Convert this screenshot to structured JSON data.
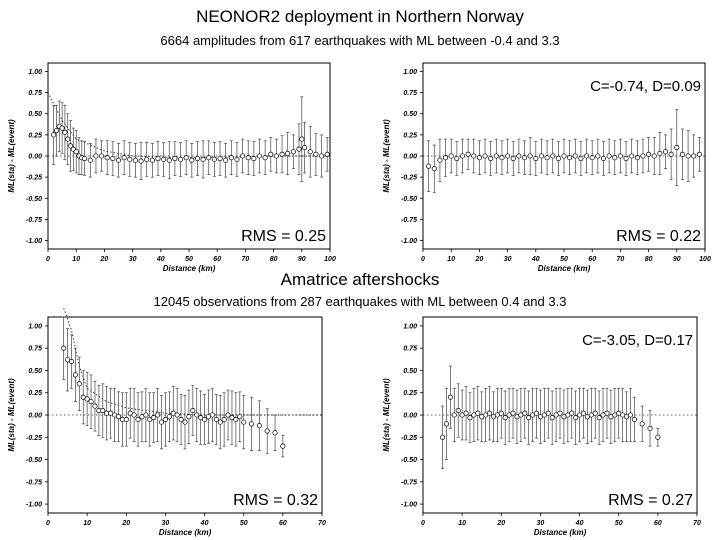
{
  "sections": [
    {
      "title": "NEONOR2 deployment in Northern Norway",
      "subtitle": "6664 amplitudes  from 617 earthquakes with ML between -0.4 and 3.3"
    },
    {
      "title": "Amatrice aftershocks",
      "subtitle": "12045 observations from 287 earthquakes with ML between 0.4 and 3.3"
    }
  ],
  "chart_data": [
    {
      "type": "scatter",
      "panel": "top-left",
      "xlabel": "Distance (km)",
      "ylabel": "ML(sta) - ML(event)",
      "xlim": [
        0,
        100
      ],
      "ylim": [
        -1.1,
        1.1
      ],
      "xticks": [
        "0",
        "10",
        "20",
        "30",
        "40",
        "50",
        "60",
        "70",
        "80",
        "90",
        "100"
      ],
      "yticks": [
        "1.00",
        "0.75",
        "0.50",
        "0.25",
        "0.00",
        "-0.25",
        "-0.50",
        "-0.75",
        "-1.00"
      ],
      "annotation": "RMS = 0.25",
      "label": "",
      "points": [
        [
          2,
          0.25,
          0.35
        ],
        [
          3,
          0.3,
          0.3
        ],
        [
          4,
          0.35,
          0.3
        ],
        [
          5,
          0.33,
          0.3
        ],
        [
          6,
          0.28,
          0.32
        ],
        [
          7,
          0.2,
          0.3
        ],
        [
          8,
          0.12,
          0.3
        ],
        [
          9,
          0.08,
          0.25
        ],
        [
          10,
          0.05,
          0.25
        ],
        [
          11,
          0.0,
          0.22
        ],
        [
          12,
          -0.02,
          0.2
        ],
        [
          13,
          -0.03,
          0.2
        ],
        [
          15,
          -0.05,
          0.2
        ],
        [
          17,
          0.0,
          0.2
        ],
        [
          19,
          0.0,
          0.18
        ],
        [
          21,
          -0.02,
          0.2
        ],
        [
          23,
          -0.03,
          0.2
        ],
        [
          25,
          -0.05,
          0.2
        ],
        [
          27,
          -0.02,
          0.2
        ],
        [
          29,
          -0.04,
          0.2
        ],
        [
          31,
          -0.05,
          0.2
        ],
        [
          33,
          -0.06,
          0.22
        ],
        [
          35,
          -0.04,
          0.2
        ],
        [
          37,
          -0.05,
          0.2
        ],
        [
          39,
          -0.03,
          0.2
        ],
        [
          41,
          -0.04,
          0.2
        ],
        [
          43,
          -0.05,
          0.22
        ],
        [
          45,
          -0.03,
          0.2
        ],
        [
          47,
          -0.04,
          0.2
        ],
        [
          49,
          -0.02,
          0.2
        ],
        [
          51,
          -0.05,
          0.2
        ],
        [
          53,
          -0.03,
          0.2
        ],
        [
          55,
          -0.04,
          0.22
        ],
        [
          57,
          -0.02,
          0.2
        ],
        [
          59,
          -0.04,
          0.2
        ],
        [
          61,
          -0.03,
          0.2
        ],
        [
          63,
          -0.05,
          0.2
        ],
        [
          65,
          -0.02,
          0.2
        ],
        [
          67,
          -0.04,
          0.2
        ],
        [
          69,
          0.0,
          0.2
        ],
        [
          71,
          -0.02,
          0.2
        ],
        [
          73,
          -0.03,
          0.2
        ],
        [
          75,
          0.0,
          0.2
        ],
        [
          77,
          -0.02,
          0.2
        ],
        [
          79,
          0.02,
          0.2
        ],
        [
          81,
          0.0,
          0.2
        ],
        [
          83,
          0.02,
          0.22
        ],
        [
          85,
          0.03,
          0.25
        ],
        [
          87,
          0.05,
          0.2
        ],
        [
          89,
          0.08,
          0.3
        ],
        [
          90,
          0.2,
          0.5
        ],
        [
          91,
          0.1,
          0.3
        ],
        [
          93,
          0.05,
          0.3
        ],
        [
          95,
          0.02,
          0.25
        ],
        [
          97,
          0.0,
          0.25
        ],
        [
          99,
          0.02,
          0.2
        ]
      ],
      "trend": [
        [
          0,
          0.75
        ],
        [
          5,
          0.42
        ],
        [
          10,
          0.2
        ],
        [
          20,
          0.06
        ],
        [
          30,
          0.0
        ],
        [
          50,
          -0.02
        ],
        [
          80,
          0.0
        ],
        [
          100,
          0.0
        ]
      ]
    },
    {
      "type": "scatter",
      "panel": "top-right",
      "xlabel": "Distance (km)",
      "ylabel": "ML(sta) - ML(event)",
      "xlim": [
        0,
        100
      ],
      "ylim": [
        -1.1,
        1.1
      ],
      "xticks": [
        "0",
        "10",
        "20",
        "30",
        "40",
        "50",
        "60",
        "70",
        "80",
        "90",
        "100"
      ],
      "yticks": [
        "1.00",
        "0.75",
        "0.50",
        "0.25",
        "0.00",
        "-0.25",
        "-0.50",
        "-0.75",
        "-1.00"
      ],
      "annotation": "RMS = 0.22",
      "label": "C=-0.74, D=0.09",
      "points": [
        [
          2,
          -0.12,
          0.3
        ],
        [
          4,
          -0.15,
          0.28
        ],
        [
          6,
          -0.05,
          0.25
        ],
        [
          8,
          -0.02,
          0.22
        ],
        [
          10,
          0.0,
          0.2
        ],
        [
          12,
          -0.03,
          0.2
        ],
        [
          14,
          0.0,
          0.2
        ],
        [
          16,
          0.02,
          0.18
        ],
        [
          18,
          0.0,
          0.2
        ],
        [
          20,
          -0.02,
          0.2
        ],
        [
          22,
          0.0,
          0.2
        ],
        [
          24,
          -0.03,
          0.2
        ],
        [
          26,
          0.0,
          0.2
        ],
        [
          28,
          -0.02,
          0.2
        ],
        [
          30,
          0.0,
          0.2
        ],
        [
          32,
          -0.03,
          0.2
        ],
        [
          34,
          0.0,
          0.2
        ],
        [
          36,
          -0.02,
          0.2
        ],
        [
          38,
          0.0,
          0.22
        ],
        [
          40,
          -0.03,
          0.2
        ],
        [
          42,
          0.0,
          0.2
        ],
        [
          44,
          -0.02,
          0.2
        ],
        [
          46,
          0.0,
          0.2
        ],
        [
          48,
          -0.03,
          0.2
        ],
        [
          50,
          0.0,
          0.2
        ],
        [
          52,
          -0.02,
          0.2
        ],
        [
          54,
          0.0,
          0.2
        ],
        [
          56,
          -0.03,
          0.2
        ],
        [
          58,
          0.0,
          0.2
        ],
        [
          60,
          -0.02,
          0.2
        ],
        [
          62,
          0.0,
          0.2
        ],
        [
          64,
          -0.03,
          0.2
        ],
        [
          66,
          0.0,
          0.2
        ],
        [
          68,
          -0.02,
          0.2
        ],
        [
          70,
          0.0,
          0.2
        ],
        [
          72,
          -0.03,
          0.2
        ],
        [
          74,
          0.0,
          0.2
        ],
        [
          76,
          -0.02,
          0.2
        ],
        [
          78,
          0.0,
          0.2
        ],
        [
          80,
          0.02,
          0.2
        ],
        [
          82,
          0.0,
          0.22
        ],
        [
          84,
          0.03,
          0.25
        ],
        [
          86,
          0.05,
          0.2
        ],
        [
          88,
          0.02,
          0.3
        ],
        [
          90,
          0.1,
          0.45
        ],
        [
          92,
          0.02,
          0.3
        ],
        [
          94,
          0.0,
          0.3
        ],
        [
          96,
          0.0,
          0.25
        ],
        [
          98,
          0.02,
          0.2
        ]
      ],
      "trend": []
    },
    {
      "type": "scatter",
      "panel": "bottom-left",
      "xlabel": "Distance (km)",
      "ylabel": "ML(sta) - ML(event)",
      "xlim": [
        0,
        70
      ],
      "ylim": [
        -1.1,
        1.1
      ],
      "xticks": [
        "0",
        "10",
        "20",
        "30",
        "40",
        "50",
        "60",
        "70"
      ],
      "yticks": [
        "1.00",
        "0.75",
        "0.50",
        "0.25",
        "0.00",
        "-0.25",
        "-0.50",
        "-0.75",
        "-1.00"
      ],
      "annotation": "RMS = 0.32",
      "label": "",
      "points": [
        [
          4,
          0.75,
          0.35
        ],
        [
          5,
          0.62,
          0.35
        ],
        [
          6,
          0.6,
          0.3
        ],
        [
          7,
          0.45,
          0.3
        ],
        [
          8,
          0.35,
          0.3
        ],
        [
          9,
          0.2,
          0.3
        ],
        [
          10,
          0.18,
          0.3
        ],
        [
          11,
          0.15,
          0.3
        ],
        [
          12,
          0.1,
          0.28
        ],
        [
          13,
          0.05,
          0.28
        ],
        [
          14,
          0.05,
          0.3
        ],
        [
          15,
          0.02,
          0.3
        ],
        [
          16,
          0.02,
          0.28
        ],
        [
          17,
          0.0,
          0.3
        ],
        [
          18,
          -0.02,
          0.28
        ],
        [
          19,
          -0.05,
          0.3
        ],
        [
          20,
          -0.05,
          0.3
        ],
        [
          21,
          0.02,
          0.28
        ],
        [
          22,
          0.0,
          0.3
        ],
        [
          23,
          -0.05,
          0.3
        ],
        [
          24,
          -0.02,
          0.28
        ],
        [
          25,
          0.0,
          0.3
        ],
        [
          26,
          -0.05,
          0.3
        ],
        [
          27,
          -0.03,
          0.28
        ],
        [
          28,
          0.0,
          0.3
        ],
        [
          29,
          -0.08,
          0.3
        ],
        [
          30,
          -0.05,
          0.3
        ],
        [
          31,
          -0.02,
          0.28
        ],
        [
          32,
          0.02,
          0.3
        ],
        [
          33,
          0.0,
          0.3
        ],
        [
          34,
          -0.05,
          0.28
        ],
        [
          35,
          -0.08,
          0.3
        ],
        [
          36,
          -0.02,
          0.3
        ],
        [
          37,
          0.05,
          0.28
        ],
        [
          38,
          0.0,
          0.3
        ],
        [
          39,
          -0.03,
          0.3
        ],
        [
          40,
          -0.05,
          0.28
        ],
        [
          41,
          -0.02,
          0.3
        ],
        [
          42,
          0.0,
          0.3
        ],
        [
          43,
          -0.05,
          0.28
        ],
        [
          44,
          -0.08,
          0.3
        ],
        [
          45,
          -0.05,
          0.3
        ],
        [
          46,
          0.0,
          0.28
        ],
        [
          47,
          -0.03,
          0.3
        ],
        [
          48,
          -0.05,
          0.3
        ],
        [
          49,
          -0.02,
          0.28
        ],
        [
          50,
          -0.08,
          0.3
        ],
        [
          52,
          -0.1,
          0.3
        ],
        [
          54,
          -0.12,
          0.28
        ],
        [
          56,
          -0.18,
          0.25
        ],
        [
          58,
          -0.2,
          0.2
        ],
        [
          60,
          -0.35,
          0.12
        ]
      ],
      "trend": [
        [
          4,
          1.2
        ],
        [
          6,
          0.95
        ],
        [
          8,
          0.55
        ],
        [
          10,
          0.3
        ],
        [
          15,
          0.15
        ],
        [
          20,
          0.08
        ],
        [
          30,
          0.02
        ],
        [
          40,
          0.0
        ],
        [
          70,
          0.0
        ]
      ]
    },
    {
      "type": "scatter",
      "panel": "bottom-right",
      "xlabel": "Distance (km)",
      "ylabel": "ML(sta) - ML(event)",
      "xlim": [
        0,
        70
      ],
      "ylim": [
        -1.1,
        1.1
      ],
      "xticks": [
        "0",
        "10",
        "20",
        "30",
        "40",
        "50",
        "60",
        "70"
      ],
      "yticks": [
        "1.00",
        "0.75",
        "0.50",
        "0.25",
        "0.00",
        "-0.25",
        "-0.50",
        "-0.75",
        "-1.00"
      ],
      "annotation": "RMS = 0.27",
      "label": "C=-3.05, D=0.17",
      "points": [
        [
          5,
          -0.25,
          0.35
        ],
        [
          6,
          -0.1,
          0.4
        ],
        [
          7,
          0.2,
          0.35
        ],
        [
          8,
          0.0,
          0.3
        ],
        [
          9,
          0.05,
          0.3
        ],
        [
          10,
          0.0,
          0.28
        ],
        [
          11,
          0.02,
          0.3
        ],
        [
          12,
          -0.03,
          0.28
        ],
        [
          13,
          0.0,
          0.3
        ],
        [
          14,
          0.02,
          0.3
        ],
        [
          15,
          -0.02,
          0.28
        ],
        [
          16,
          0.0,
          0.3
        ],
        [
          17,
          0.02,
          0.3
        ],
        [
          18,
          -0.02,
          0.28
        ],
        [
          19,
          0.0,
          0.3
        ],
        [
          20,
          0.02,
          0.28
        ],
        [
          21,
          -0.03,
          0.3
        ],
        [
          22,
          0.0,
          0.3
        ],
        [
          23,
          0.02,
          0.28
        ],
        [
          24,
          -0.02,
          0.3
        ],
        [
          25,
          0.0,
          0.3
        ],
        [
          26,
          0.02,
          0.28
        ],
        [
          27,
          -0.03,
          0.3
        ],
        [
          28,
          0.0,
          0.3
        ],
        [
          29,
          0.02,
          0.28
        ],
        [
          30,
          -0.02,
          0.3
        ],
        [
          31,
          0.0,
          0.3
        ],
        [
          32,
          0.02,
          0.28
        ],
        [
          33,
          -0.03,
          0.3
        ],
        [
          34,
          0.0,
          0.3
        ],
        [
          35,
          0.02,
          0.28
        ],
        [
          36,
          -0.02,
          0.3
        ],
        [
          37,
          0.0,
          0.3
        ],
        [
          38,
          0.02,
          0.28
        ],
        [
          39,
          -0.03,
          0.3
        ],
        [
          40,
          0.0,
          0.3
        ],
        [
          41,
          0.02,
          0.28
        ],
        [
          42,
          -0.02,
          0.3
        ],
        [
          43,
          0.0,
          0.3
        ],
        [
          44,
          0.02,
          0.28
        ],
        [
          45,
          -0.03,
          0.3
        ],
        [
          46,
          0.0,
          0.3
        ],
        [
          47,
          0.02,
          0.28
        ],
        [
          48,
          -0.02,
          0.3
        ],
        [
          49,
          0.0,
          0.3
        ],
        [
          50,
          0.02,
          0.28
        ],
        [
          51,
          0.0,
          0.3
        ],
        [
          52,
          -0.02,
          0.28
        ],
        [
          53,
          0.0,
          0.3
        ],
        [
          54,
          -0.05,
          0.25
        ],
        [
          56,
          -0.1,
          0.2
        ],
        [
          58,
          -0.15,
          0.2
        ],
        [
          60,
          -0.25,
          0.1
        ]
      ],
      "trend": []
    }
  ]
}
